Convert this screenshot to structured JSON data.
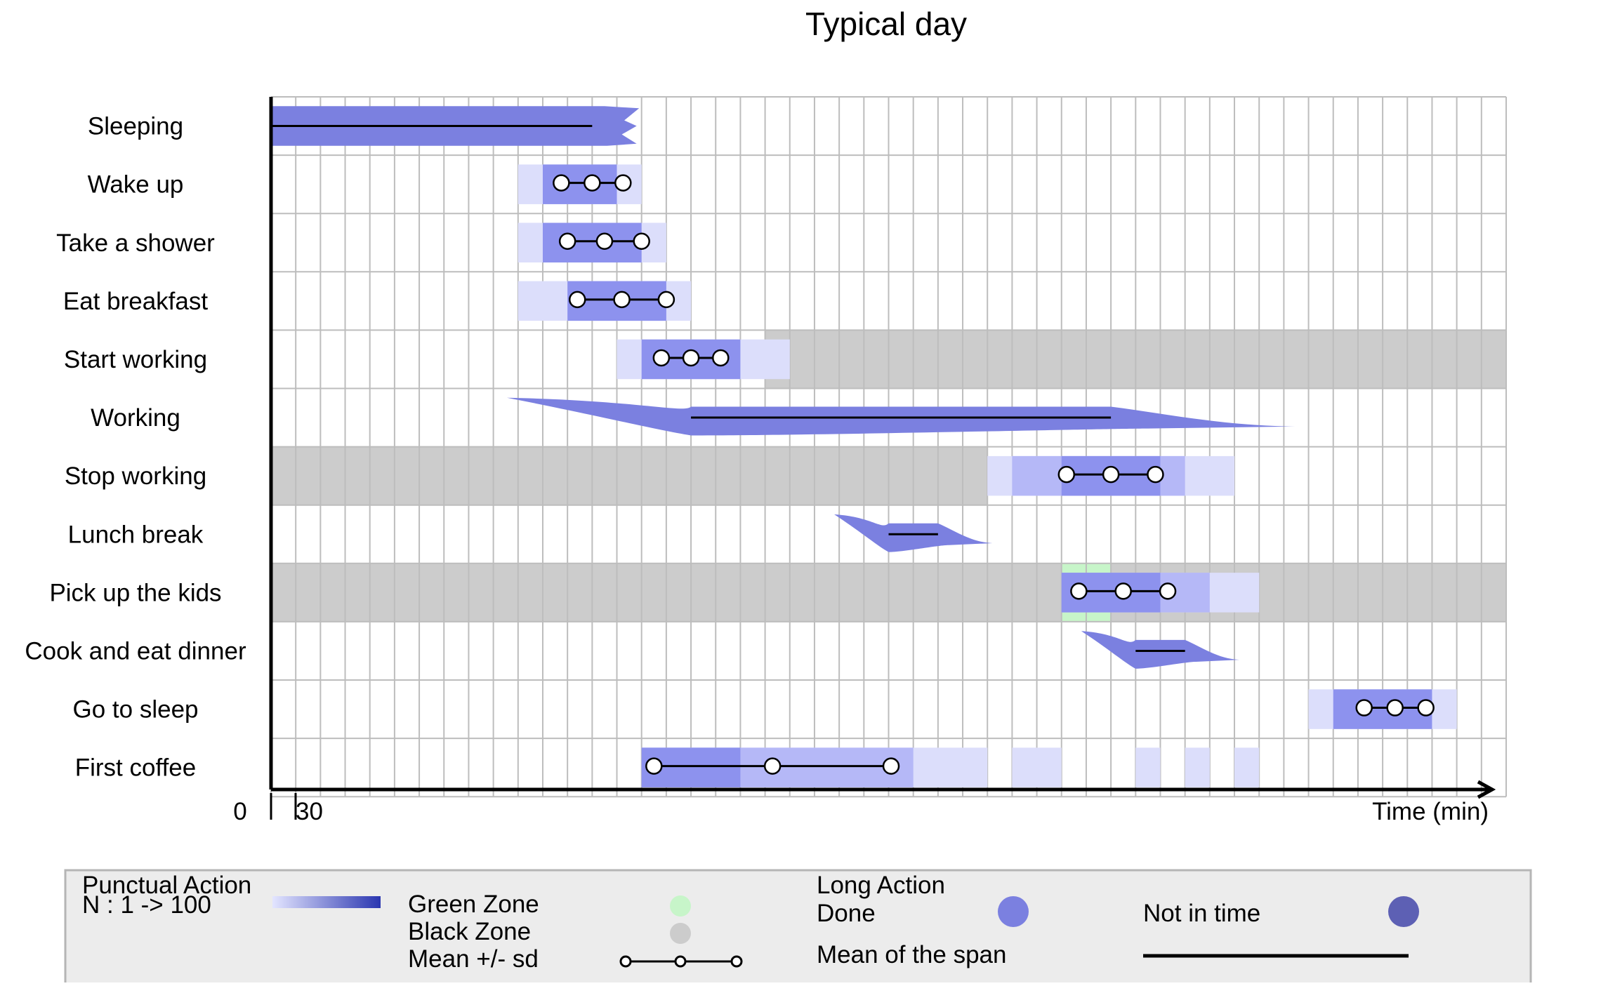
{
  "chart_data": {
    "type": "gantt-timeline",
    "title": "Typical day",
    "xlabel": "Time (min)",
    "x_tick_labels": [
      "0",
      "30"
    ],
    "x_range_slots": [
      0,
      50
    ],
    "grid": true,
    "rows": [
      {
        "label": "Sleeping",
        "kind": "long",
        "mean_span": [
          0,
          13
        ]
      },
      {
        "label": "Wake up",
        "kind": "punctual",
        "mean": 13,
        "sd": 1.25,
        "windows": [
          {
            "range": [
              10,
              15
            ],
            "level": 1
          },
          {
            "range": [
              11,
              14
            ],
            "level": 3
          }
        ]
      },
      {
        "label": "Take a shower",
        "kind": "punctual",
        "mean": 13.5,
        "sd": 1.5,
        "windows": [
          {
            "range": [
              10,
              16
            ],
            "level": 1
          },
          {
            "range": [
              11,
              15
            ],
            "level": 3
          }
        ]
      },
      {
        "label": "Eat breakfast",
        "kind": "punctual",
        "mean": 14.2,
        "sd": 1.8,
        "windows": [
          {
            "range": [
              10,
              17
            ],
            "level": 1
          },
          {
            "range": [
              12,
              16
            ],
            "level": 3
          }
        ]
      },
      {
        "label": "Start working",
        "kind": "punctual",
        "mean": 17,
        "sd": 1.2,
        "black_zone": [
          20,
          50
        ],
        "windows": [
          {
            "range": [
              14,
              21
            ],
            "level": 1
          },
          {
            "range": [
              15,
              19
            ],
            "level": 3
          }
        ]
      },
      {
        "label": "Working",
        "kind": "long",
        "mean_span": [
          17,
          34
        ]
      },
      {
        "label": "Stop working",
        "kind": "punctual",
        "mean": 34,
        "sd": 1.8,
        "black_zone": [
          0,
          29
        ],
        "windows": [
          {
            "range": [
              29,
              39
            ],
            "level": 1
          },
          {
            "range": [
              30,
              37
            ],
            "level": 2
          },
          {
            "range": [
              32,
              36
            ],
            "level": 3
          }
        ]
      },
      {
        "label": "Lunch break",
        "kind": "long",
        "mean_span": [
          25,
          27
        ]
      },
      {
        "label": "Pick up the kids",
        "kind": "punctual",
        "mean": 34.5,
        "sd": 1.8,
        "black_zone": [
          0,
          50
        ],
        "green_zone": [
          32,
          34
        ],
        "windows": [
          {
            "range": [
              32,
              40
            ],
            "level": 1
          },
          {
            "range": [
              32,
              38
            ],
            "level": 2
          },
          {
            "range": [
              32,
              36
            ],
            "level": 3
          }
        ]
      },
      {
        "label": "Cook and eat dinner",
        "kind": "long",
        "mean_span": [
          35,
          37
        ]
      },
      {
        "label": "Go to sleep",
        "kind": "punctual",
        "mean": 45.5,
        "sd": 1.25,
        "windows": [
          {
            "range": [
              42,
              48
            ],
            "level": 1
          },
          {
            "range": [
              43,
              47
            ],
            "level": 3
          }
        ]
      },
      {
        "label": "First coffee",
        "kind": "punctual",
        "mean": 20.3,
        "sd": 4.8,
        "windows": [
          {
            "range": [
              15,
              29
            ],
            "level": 1
          },
          {
            "range": [
              30,
              32
            ],
            "level": 1
          },
          {
            "range": [
              35,
              36
            ],
            "level": 1
          },
          {
            "range": [
              37,
              38
            ],
            "level": 1
          },
          {
            "range": [
              39,
              40
            ],
            "level": 1
          },
          {
            "range": [
              15,
              26
            ],
            "level": 2
          },
          {
            "range": [
              15,
              19
            ],
            "level": 3
          }
        ]
      }
    ],
    "legend": {
      "punctual_title": "Punctual Action",
      "punctual_scale": "N : 1 -> 100",
      "green_zone": "Green Zone",
      "black_zone": "Black Zone",
      "mean_sd": "Mean +/- sd",
      "long_title": "Long Action",
      "done": "Done",
      "mean_span": "Mean of the span",
      "not_in_time": "Not in time"
    },
    "colors": {
      "done": "#7b80e0",
      "not_in_time": "#5d60b4",
      "green_zone": "#c7f5c9",
      "black_zone": "#cccccc",
      "grid": "#bdbdbd",
      "legend_bg": "#ececec"
    }
  }
}
